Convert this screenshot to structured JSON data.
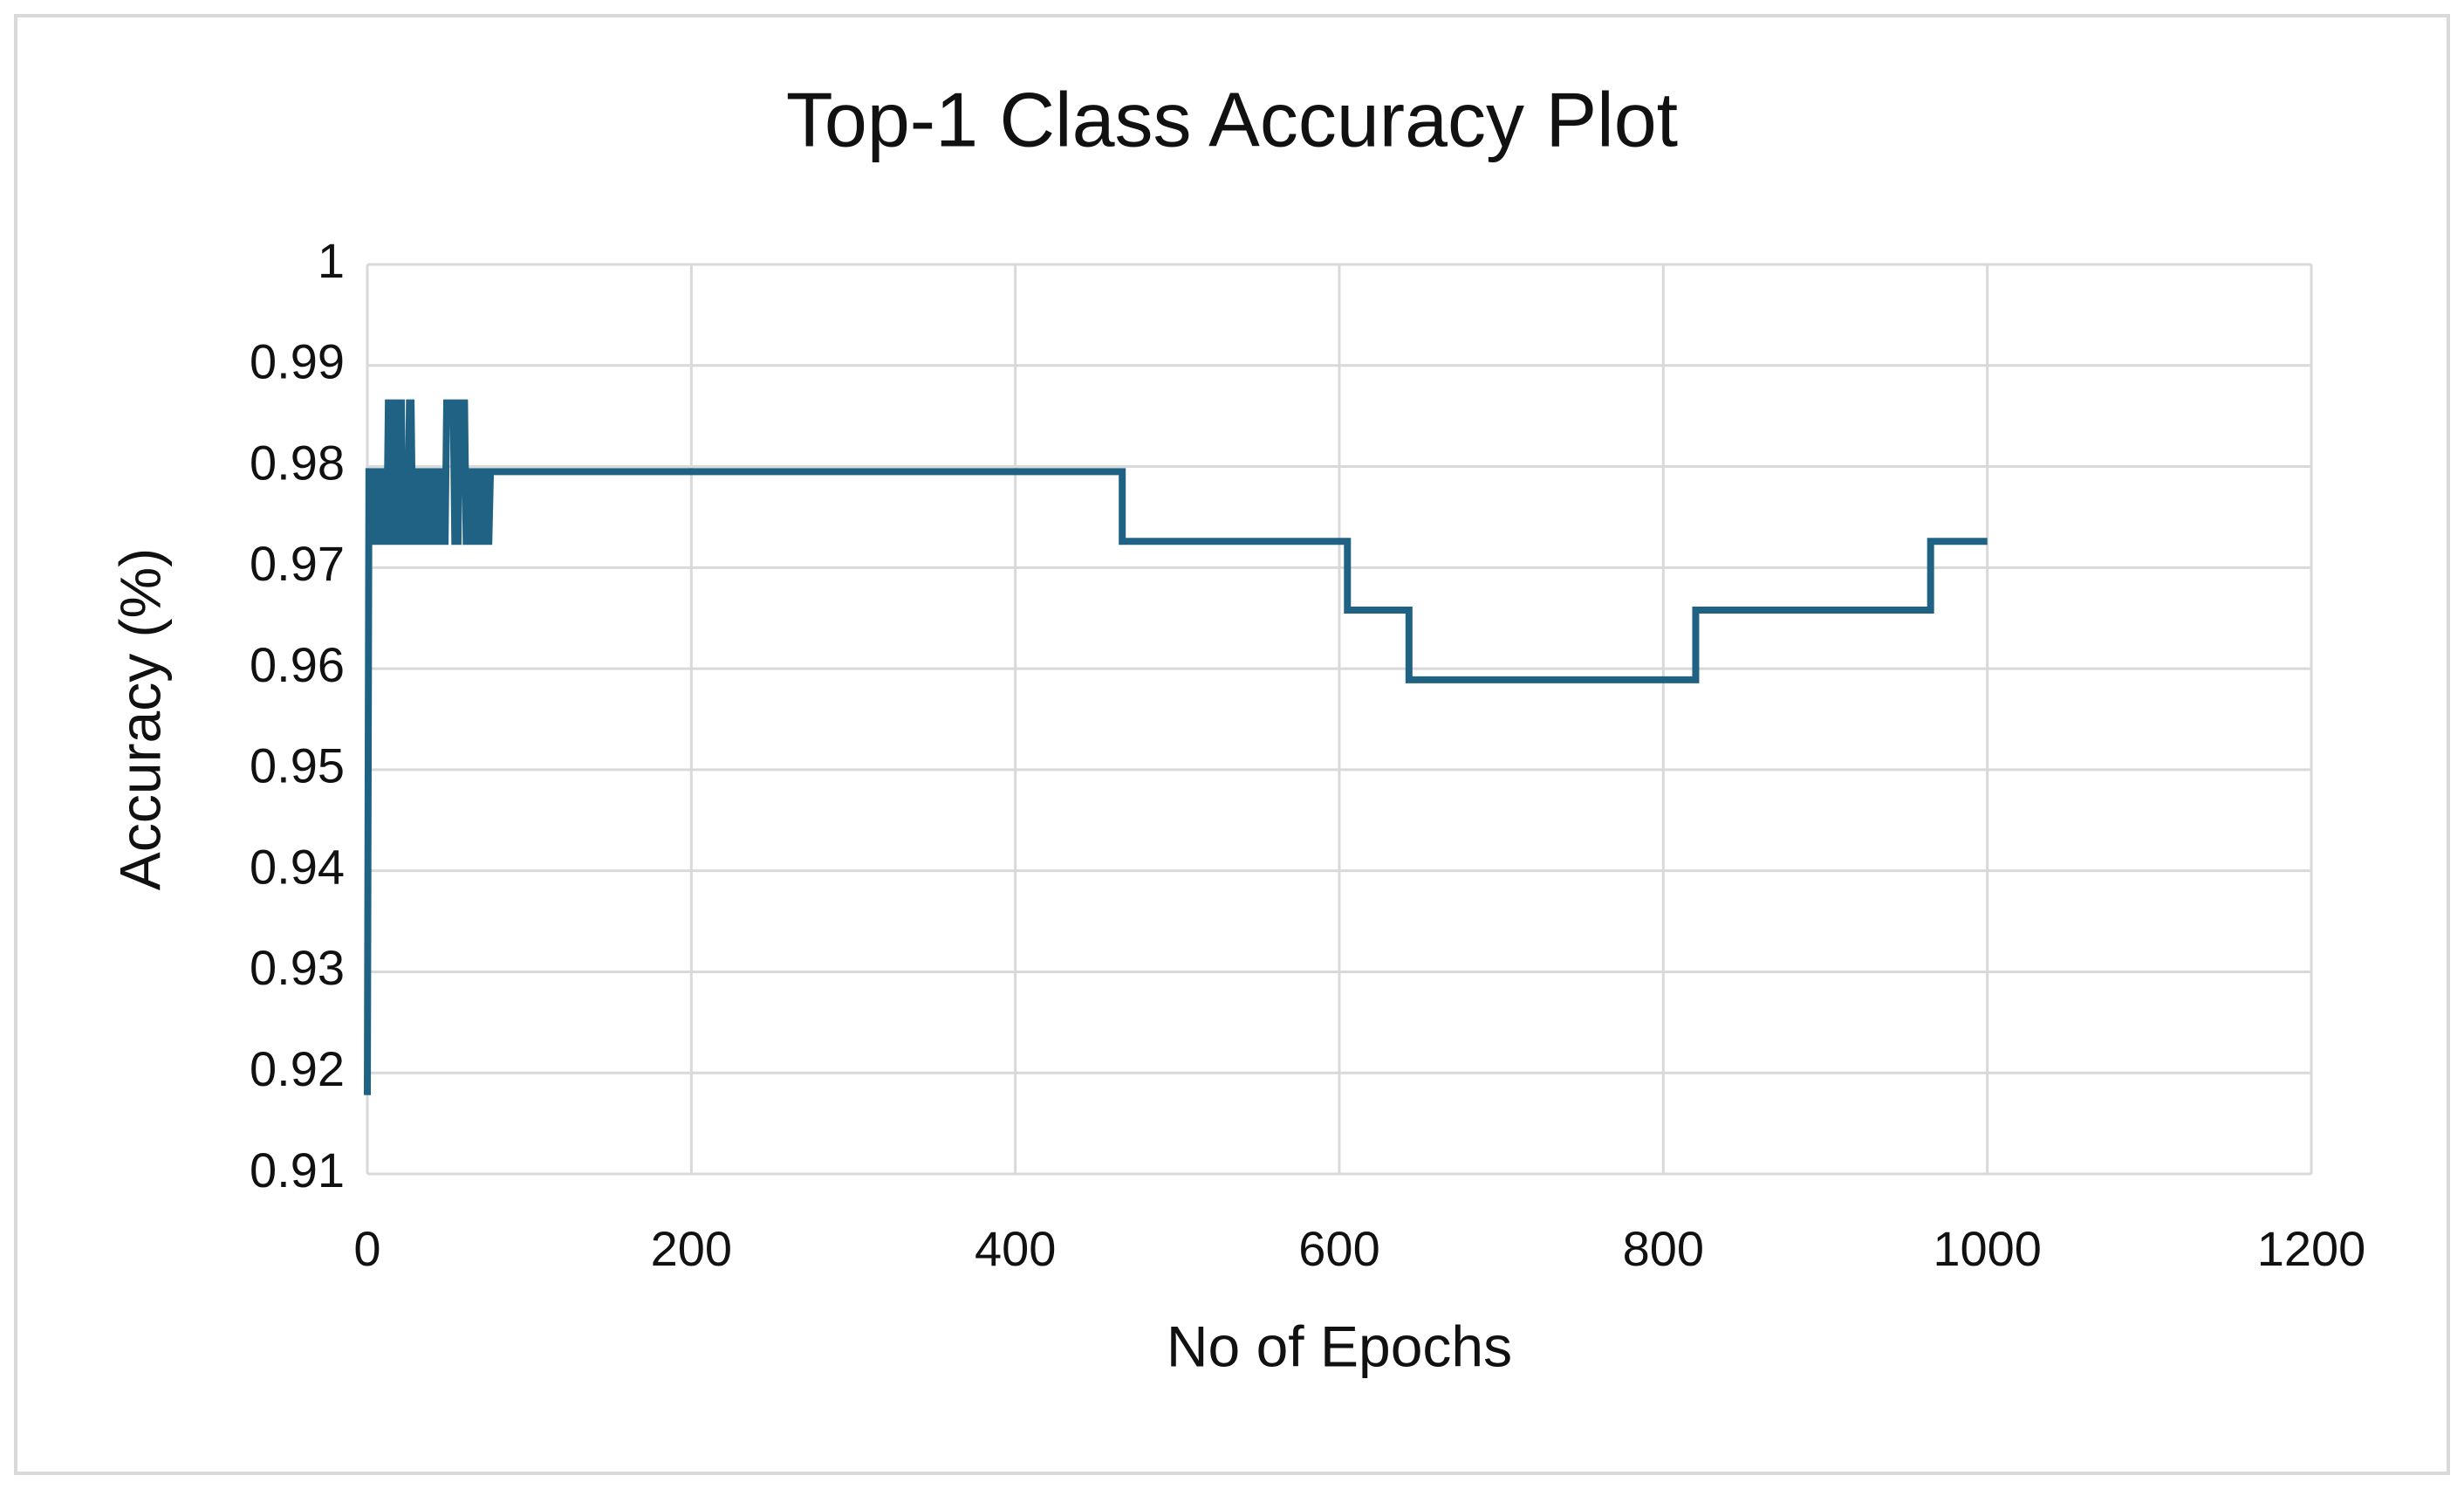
{
  "chart_data": {
    "type": "line",
    "title": "Top-1 Class Accuracy Plot",
    "x_label": "No of Epochs",
    "y_label": "Accuracy (%)",
    "xlim": [
      0,
      1200
    ],
    "xticks": [
      0,
      200,
      400,
      600,
      800,
      1000,
      1200
    ],
    "ylim": [
      0.91,
      1
    ],
    "yticks": [
      0.91,
      0.92,
      0.93,
      0.94,
      0.95,
      0.96,
      0.97,
      0.98,
      0.99,
      1
    ],
    "grid": true,
    "series": [
      {
        "color": "#1f6283",
        "x": [
          0,
          1,
          3,
          4,
          6,
          7,
          9,
          10,
          12,
          13,
          15,
          16,
          18,
          19,
          21,
          22,
          25,
          26,
          27,
          28,
          30,
          31,
          33,
          34,
          36,
          37,
          39,
          40,
          42,
          43,
          45,
          46,
          48,
          49,
          53,
          54,
          56,
          57,
          60,
          61,
          63,
          64,
          66,
          67,
          69,
          70,
          72,
          73,
          75,
          76,
          78,
          466,
          466,
          605,
          605,
          643,
          643,
          820,
          820,
          965,
          965,
          1000
        ],
        "values": [
          0.9178,
          0.9795,
          0.9795,
          0.9726,
          0.9726,
          0.9795,
          0.9795,
          0.9726,
          0.9726,
          0.9863,
          0.9863,
          0.9726,
          0.9726,
          0.9863,
          0.9863,
          0.9726,
          0.9726,
          0.9863,
          0.9863,
          0.9726,
          0.9726,
          0.9795,
          0.9795,
          0.9726,
          0.9726,
          0.9795,
          0.9795,
          0.9726,
          0.9726,
          0.9795,
          0.9795,
          0.9726,
          0.9726,
          0.9863,
          0.9863,
          0.9726,
          0.9726,
          0.9863,
          0.9863,
          0.9726,
          0.9726,
          0.9795,
          0.9795,
          0.9726,
          0.9726,
          0.9795,
          0.9795,
          0.9726,
          0.9726,
          0.9795,
          0.9795,
          0.9795,
          0.9726,
          0.9726,
          0.9658,
          0.9658,
          0.9589,
          0.9589,
          0.9658,
          0.9658,
          0.9726,
          0.9726
        ]
      }
    ]
  }
}
